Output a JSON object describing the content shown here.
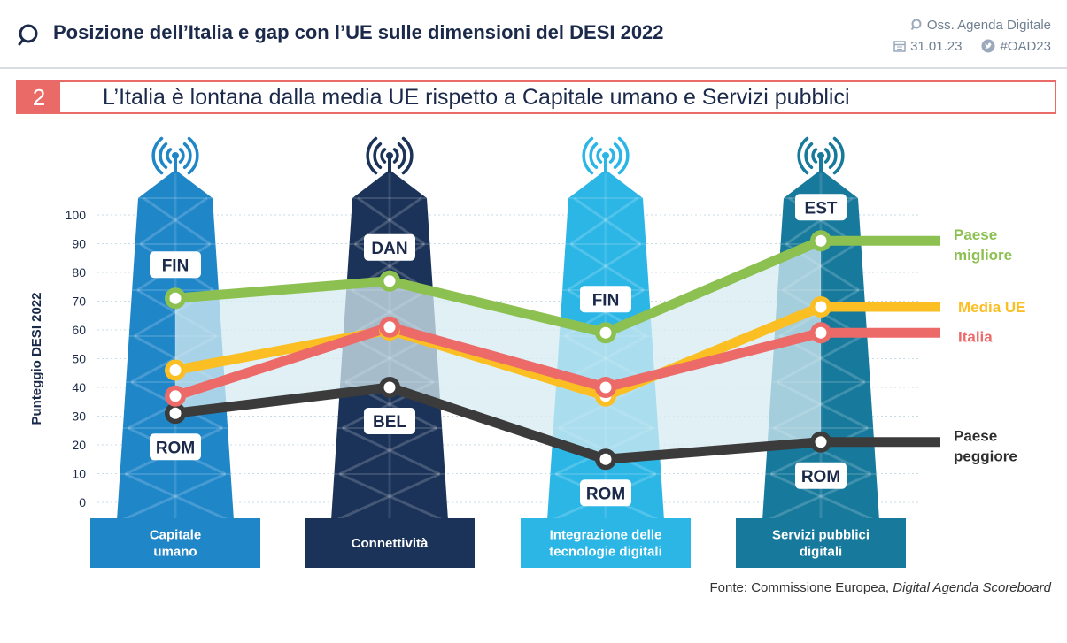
{
  "header": {
    "title": "Posizione dell’Italia e gap con l’UE sulle dimensioni del DESI 2022",
    "meta_org": "Oss. Agenda Digitale",
    "meta_date": "31.01.23",
    "meta_hashtag": "#OAD23"
  },
  "subtitle": {
    "number": "2",
    "text": "L’Italia è lontana dalla media UE rispetto a Capitale umano e Servizi pubblici"
  },
  "source": {
    "prefix": "Fonte: Commissione Europea, ",
    "italic": "Digital Agenda Scoreboard"
  },
  "colors": {
    "tower_1": "#1f86c8",
    "tower_2": "#1b3358",
    "tower_3": "#2bb6e6",
    "tower_4": "#17799b",
    "best": "#8cc152",
    "eu": "#fbbf24",
    "italy": "#ec6a68",
    "worst": "#3b3b3b",
    "gap_fill": "#d6ebf2"
  },
  "chart_data": {
    "type": "line",
    "ylabel": "Punteggio DESI 2022",
    "ylim": [
      0,
      100
    ],
    "yticks": [
      0,
      10,
      20,
      30,
      40,
      50,
      60,
      70,
      80,
      90,
      100
    ],
    "categories": [
      [
        "Capitale",
        "umano"
      ],
      [
        "Connettività"
      ],
      [
        "Integrazione delle",
        "tecnologie digitali"
      ],
      [
        "Servizi pubblici",
        "digitali"
      ]
    ],
    "series": [
      {
        "key": "best",
        "name": "Paese migliore",
        "legend_lines": [
          "Paese",
          "migliore"
        ],
        "values": [
          71,
          77,
          59,
          91
        ],
        "country_labels": [
          "FIN",
          "DAN",
          "FIN",
          "EST"
        ]
      },
      {
        "key": "eu",
        "name": "Media UE",
        "legend_lines": [
          "Media UE"
        ],
        "values": [
          46,
          60,
          37,
          68
        ]
      },
      {
        "key": "italy",
        "name": "Italia",
        "legend_lines": [
          "Italia"
        ],
        "values": [
          37,
          61,
          40,
          59
        ]
      },
      {
        "key": "worst",
        "name": "Paese peggiore",
        "legend_lines": [
          "Paese",
          "peggiore"
        ],
        "values": [
          31,
          40,
          15,
          21
        ],
        "country_labels": [
          "ROM",
          "BEL",
          "ROM",
          "ROM"
        ]
      }
    ]
  }
}
